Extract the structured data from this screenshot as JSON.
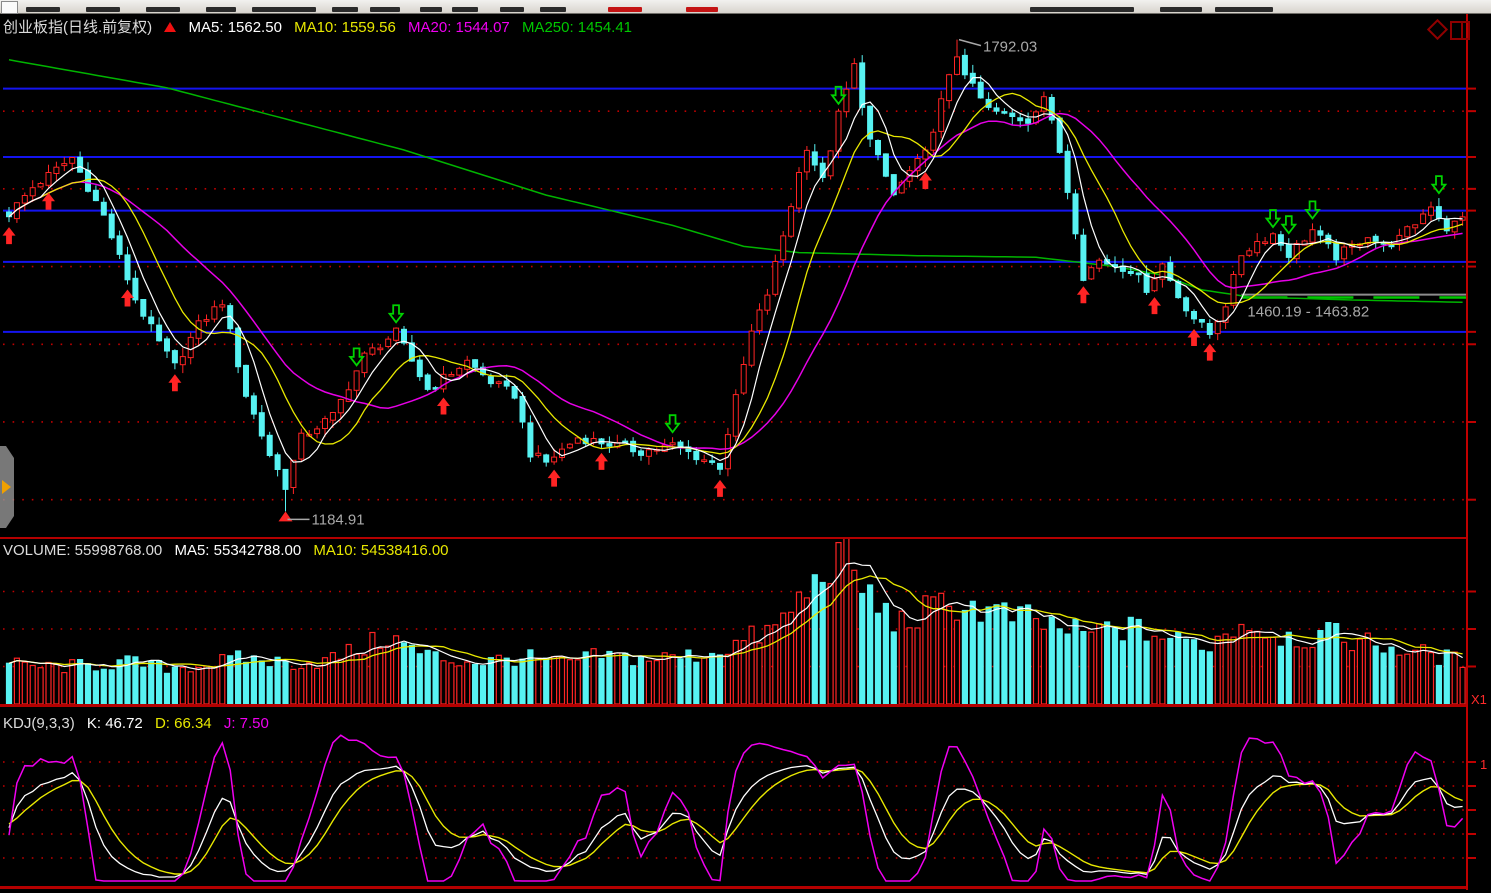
{
  "colors": {
    "up": "#ff2424",
    "down": "#57f2f2",
    "ma5": "#ffffff",
    "ma10": "#e8e800",
    "ma20": "#e600e6",
    "ma250": "#00b400",
    "blue_line": "#1414f0",
    "grid": "#c00000",
    "frame": "#c00000",
    "annotation": "#a8a8a8",
    "volume_ma5": "#ffffff",
    "volume_ma10": "#e8e800",
    "kdj_k": "#ffffff",
    "kdj_d": "#e8e800",
    "kdj_j": "#f000f0"
  },
  "chart_data": [
    {
      "type": "candlestick",
      "title": "创业板指(日线.前复权)",
      "legend": {
        "ma5": "MA5: 1562.50",
        "ma10": "MA10: 1559.56",
        "ma20": "MA20: 1544.07",
        "ma250": "MA250: 1454.41"
      },
      "n": 185,
      "ylim": [
        1152,
        1825
      ],
      "grid_levels": [
        1200,
        1300,
        1400,
        1500,
        1600,
        1700
      ],
      "blue_levels": [
        1729,
        1641,
        1572,
        1506,
        1416
      ],
      "close_anchors": [
        [
          0,
          1568
        ],
        [
          3,
          1602
        ],
        [
          8,
          1640
        ],
        [
          12,
          1565
        ],
        [
          16,
          1458
        ],
        [
          19,
          1402
        ],
        [
          21,
          1372
        ],
        [
          24,
          1425
        ],
        [
          27,
          1455
        ],
        [
          30,
          1335
        ],
        [
          33,
          1258
        ],
        [
          35,
          1218
        ],
        [
          37,
          1280
        ],
        [
          41,
          1308
        ],
        [
          45,
          1385
        ],
        [
          49,
          1415
        ],
        [
          53,
          1342
        ],
        [
          58,
          1378
        ],
        [
          61,
          1352
        ],
        [
          64,
          1335
        ],
        [
          66,
          1260
        ],
        [
          68,
          1248
        ],
        [
          72,
          1280
        ],
        [
          76,
          1272
        ],
        [
          80,
          1262
        ],
        [
          84,
          1270
        ],
        [
          87,
          1256
        ],
        [
          90,
          1243
        ],
        [
          92,
          1330
        ],
        [
          94,
          1415
        ],
        [
          96,
          1465
        ],
        [
          98,
          1540
        ],
        [
          100,
          1620
        ],
        [
          101,
          1655
        ],
        [
          103,
          1610
        ],
        [
          105,
          1695
        ],
        [
          107,
          1758
        ],
        [
          109,
          1662
        ],
        [
          112,
          1592
        ],
        [
          114,
          1622
        ],
        [
          116,
          1645
        ],
        [
          118,
          1712
        ],
        [
          120,
          1772
        ],
        [
          122,
          1730
        ],
        [
          124,
          1702
        ],
        [
          127,
          1692
        ],
        [
          129,
          1688
        ],
        [
          131,
          1720
        ],
        [
          133,
          1648
        ],
        [
          135,
          1548
        ],
        [
          136,
          1488
        ],
        [
          138,
          1508
        ],
        [
          140,
          1502
        ],
        [
          142,
          1496
        ],
        [
          144,
          1472
        ],
        [
          146,
          1503
        ],
        [
          148,
          1462
        ],
        [
          150,
          1434
        ],
        [
          152,
          1413
        ],
        [
          154,
          1452
        ],
        [
          156,
          1516
        ],
        [
          158,
          1532
        ],
        [
          160,
          1542
        ],
        [
          162,
          1516
        ],
        [
          165,
          1547
        ],
        [
          168,
          1513
        ],
        [
          170,
          1526
        ],
        [
          172,
          1541
        ],
        [
          174,
          1526
        ],
        [
          176,
          1536
        ],
        [
          178,
          1556
        ],
        [
          180,
          1580
        ],
        [
          182,
          1549
        ],
        [
          184,
          1562
        ]
      ],
      "ma250_anchors": [
        [
          0,
          1766
        ],
        [
          20,
          1730
        ],
        [
          50,
          1650
        ],
        [
          68,
          1592
        ],
        [
          84,
          1553
        ],
        [
          93,
          1526
        ],
        [
          100,
          1518
        ],
        [
          115,
          1514
        ],
        [
          130,
          1512
        ],
        [
          140,
          1500
        ],
        [
          146,
          1489
        ],
        [
          151,
          1470
        ],
        [
          157,
          1461
        ],
        [
          170,
          1457
        ],
        [
          184,
          1454
        ]
      ],
      "markers": {
        "buy_indices": [
          0,
          5,
          15,
          21,
          55,
          69,
          75,
          90,
          116,
          136,
          145,
          150,
          152
        ],
        "sell_indices": [
          44,
          49,
          84,
          105,
          160,
          162,
          165,
          181
        ]
      },
      "annotations": {
        "high": {
          "index": 120,
          "price": 1792.03,
          "label": "1792.03"
        },
        "low": {
          "index": 35,
          "price": 1184.91,
          "label": "1184.91"
        },
        "gap": {
          "start_index": 156,
          "high": 1463.82,
          "low": 1460.19,
          "label": "1460.19 - 1463.82"
        }
      }
    },
    {
      "type": "bar",
      "name": "volume",
      "legend": {
        "volume": "VOLUME: 55998768.00",
        "ma5": "MA5: 55342788.00",
        "ma10": "MA10: 54538416.00"
      },
      "scale_label": "X1",
      "ylim_wan": [
        0,
        20000
      ],
      "grid_levels_wan": [
        5000,
        10000,
        15000
      ],
      "volume_anchors_wan": [
        [
          0,
          5200
        ],
        [
          5,
          4800
        ],
        [
          10,
          5000
        ],
        [
          15,
          5400
        ],
        [
          20,
          4700
        ],
        [
          25,
          5200
        ],
        [
          30,
          6000
        ],
        [
          35,
          5300
        ],
        [
          40,
          5600
        ],
        [
          45,
          7400
        ],
        [
          48,
          8800
        ],
        [
          52,
          6600
        ],
        [
          56,
          5700
        ],
        [
          60,
          5500
        ],
        [
          65,
          6100
        ],
        [
          70,
          5300
        ],
        [
          75,
          6300
        ],
        [
          80,
          5900
        ],
        [
          85,
          6100
        ],
        [
          88,
          6500
        ],
        [
          92,
          7800
        ],
        [
          95,
          9000
        ],
        [
          97,
          9800
        ],
        [
          100,
          13500
        ],
        [
          102,
          15500
        ],
        [
          104,
          19000
        ],
        [
          106,
          18500
        ],
        [
          108,
          15500
        ],
        [
          110,
          12500
        ],
        [
          113,
          10500
        ],
        [
          116,
          12000
        ],
        [
          120,
          13200
        ],
        [
          124,
          12000
        ],
        [
          128,
          11200
        ],
        [
          132,
          10200
        ],
        [
          136,
          9000
        ],
        [
          140,
          10000
        ],
        [
          144,
          9400
        ],
        [
          148,
          8200
        ],
        [
          152,
          7800
        ],
        [
          156,
          10800
        ],
        [
          160,
          9200
        ],
        [
          164,
          8600
        ],
        [
          168,
          9000
        ],
        [
          172,
          8000
        ],
        [
          176,
          7200
        ],
        [
          180,
          6400
        ],
        [
          184,
          5600
        ]
      ]
    },
    {
      "type": "line",
      "name": "kdj",
      "title": "KDJ(9,3,3)",
      "legend": {
        "k": "K: 46.72",
        "d": "D: 66.34",
        "j": "J: 7.50"
      },
      "params": {
        "n": 9,
        "m1": 3,
        "m2": 3
      },
      "grid_levels": [
        20,
        40,
        60,
        80,
        100
      ],
      "axis_label": "1"
    }
  ]
}
